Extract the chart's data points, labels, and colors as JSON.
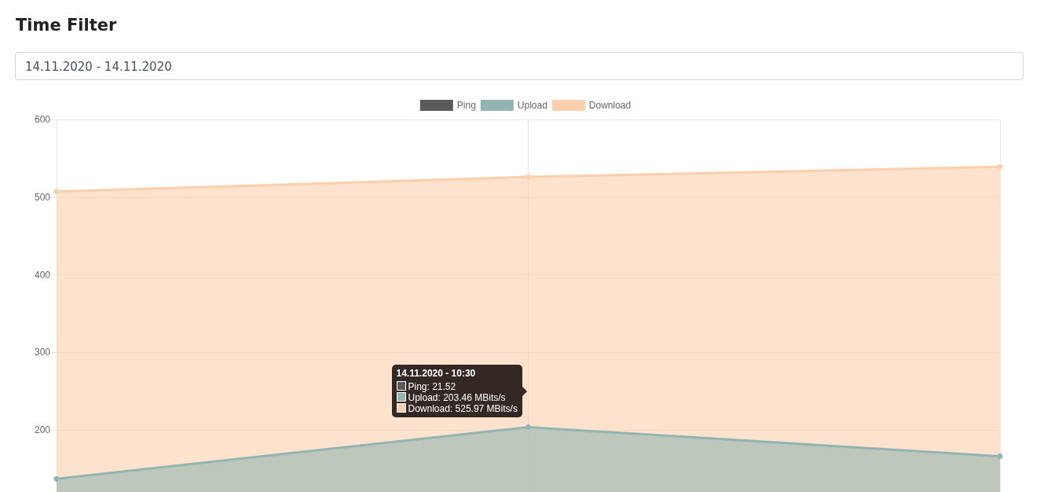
{
  "chart_data": {
    "type": "area",
    "title": "Time Filter",
    "subtitle": "14.11.2020 - 14.11.2020",
    "categories": [
      null,
      null,
      null
    ],
    "series": [
      {
        "name": "Ping",
        "color": "#595959",
        "values": [
          null,
          null,
          null
        ]
      },
      {
        "name": "Upload",
        "color": "#93b5b1",
        "values": [
          137,
          203.46,
          166
        ]
      },
      {
        "name": "Download",
        "color": "#fbcfab",
        "values": [
          507,
          525.97,
          539
        ]
      }
    ],
    "ylim": [
      120,
      600
    ],
    "yticks": [
      200,
      300,
      400,
      500,
      600
    ],
    "grid": true,
    "legend": "top",
    "marker": "circle",
    "line_style": "solid",
    "tick_labels": "y",
    "annotations": [
      "14.11.2020 - 10:30",
      "Ping: 21.52",
      "Upload: 203.46 MBits/s",
      "Download: 525.97 MBits/s"
    ]
  }
}
